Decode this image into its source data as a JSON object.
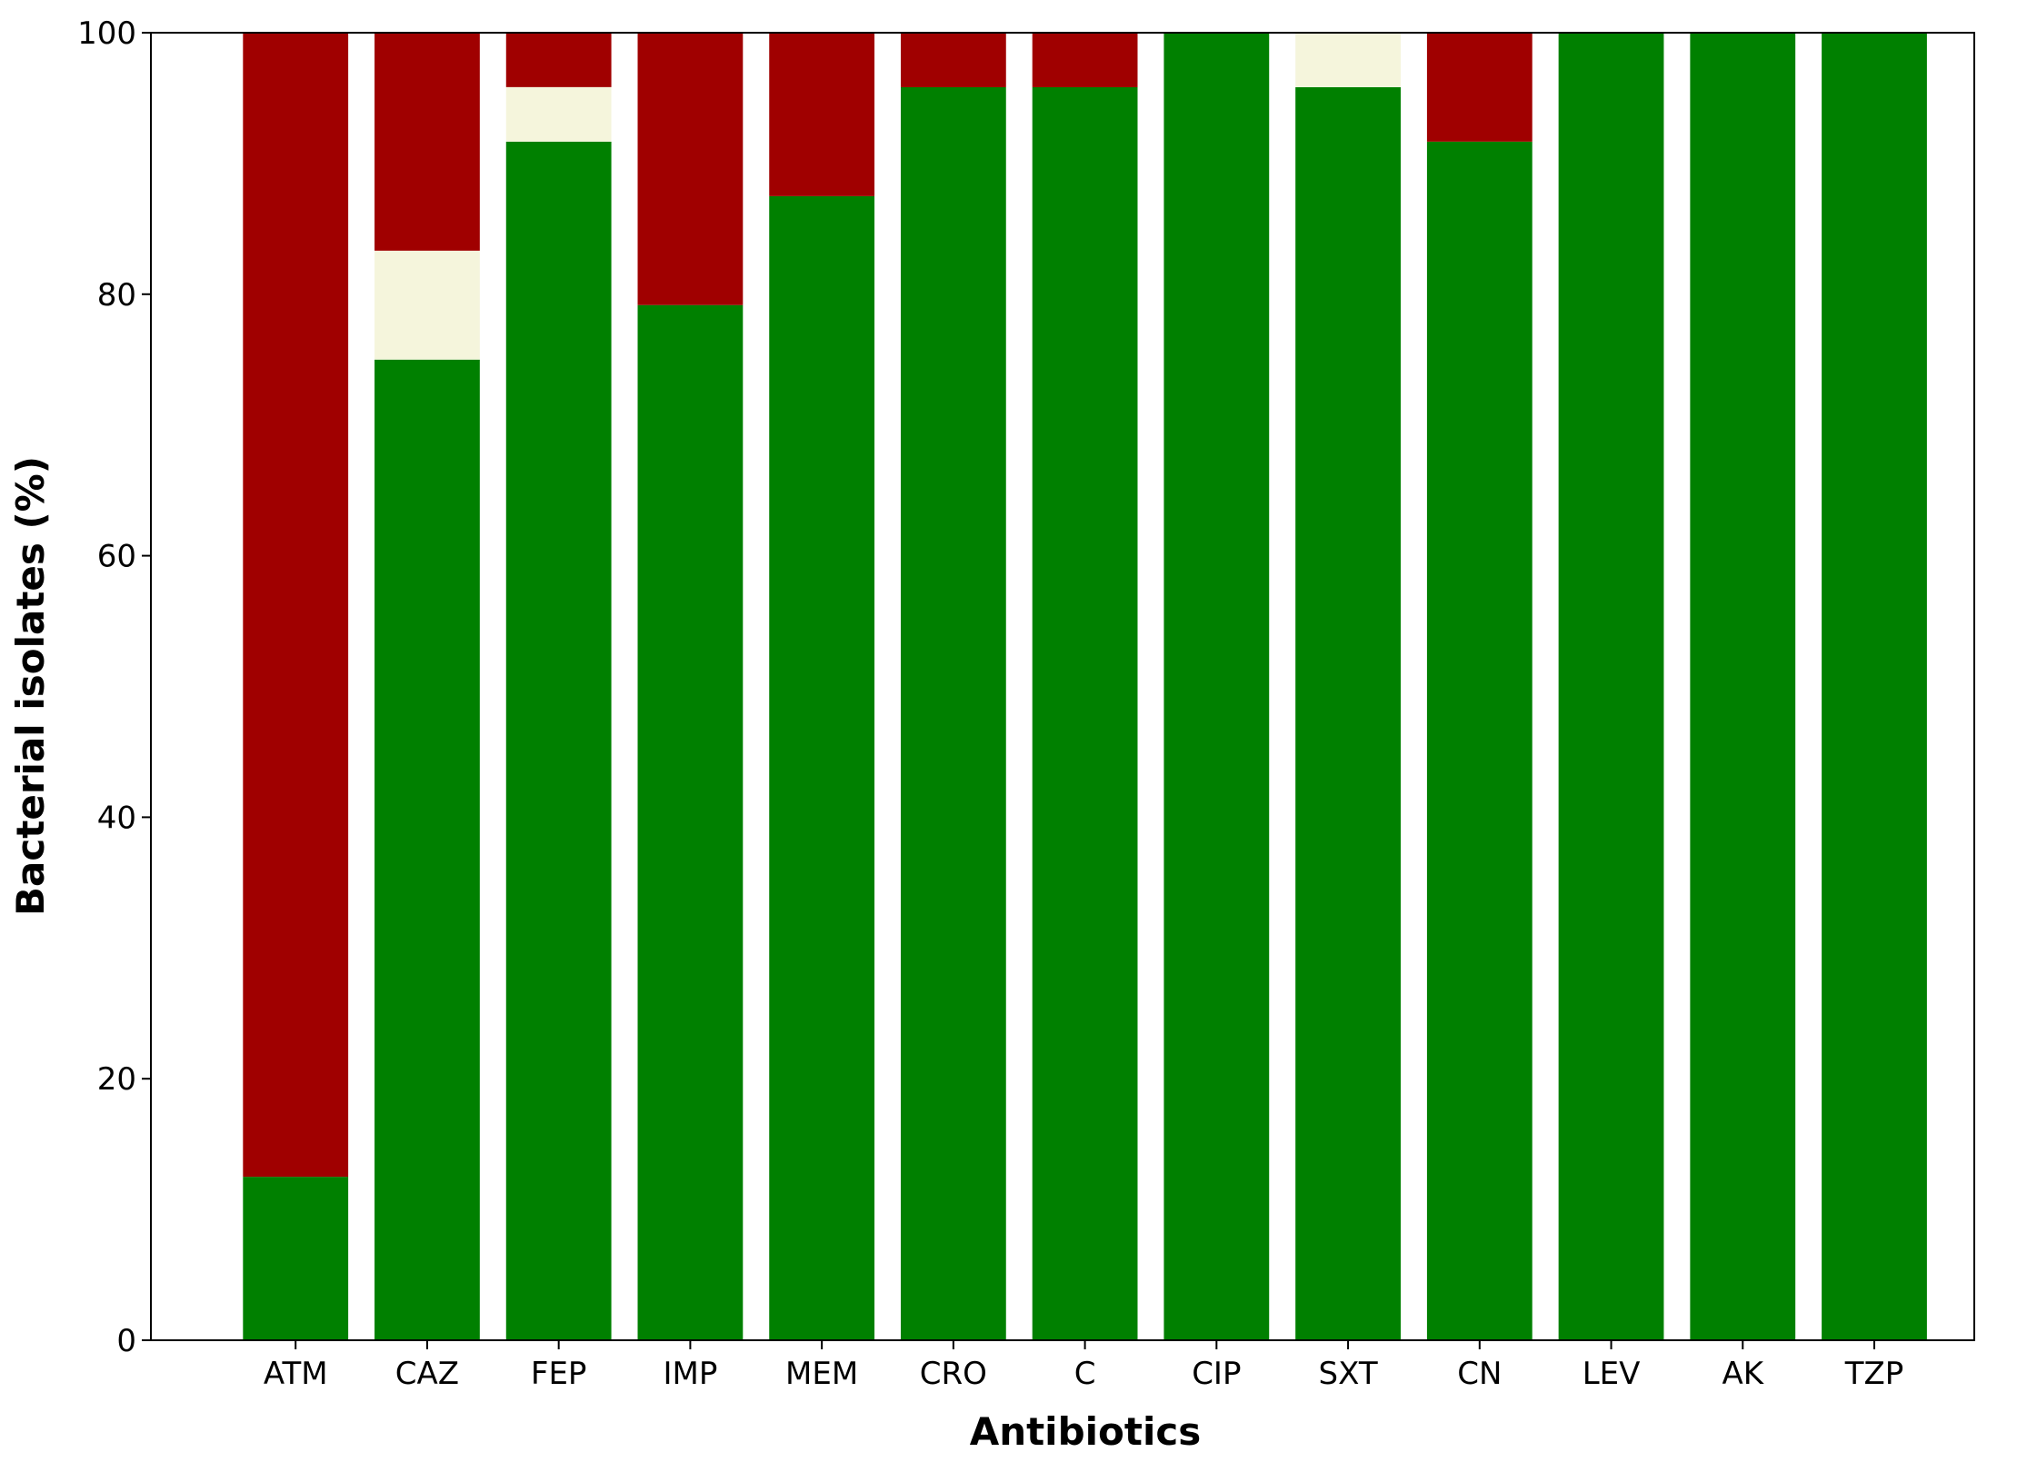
{
  "chart_data": {
    "type": "bar",
    "stacked": true,
    "title": "",
    "xlabel": "Antibiotics",
    "ylabel": "Bacterial isolates (%)",
    "ylim": [
      0,
      100
    ],
    "yticks": [
      0,
      20,
      40,
      60,
      80,
      100
    ],
    "grid": false,
    "categories": [
      "ATM",
      "CAZ",
      "FEP",
      "IMP",
      "MEM",
      "CRO",
      "C",
      "CIP",
      "SXT",
      "CN",
      "LEV",
      "AK",
      "TZP"
    ],
    "series": [
      {
        "color": "#008000",
        "values": [
          12.5,
          75,
          91.67,
          79.17,
          87.5,
          95.83,
          95.83,
          100,
          95.83,
          91.67,
          100,
          100,
          100
        ]
      },
      {
        "color": "#f5f5dc",
        "values": [
          0,
          8.33,
          4.17,
          0,
          0,
          0,
          0,
          0,
          4.17,
          0,
          0,
          0,
          0
        ]
      },
      {
        "color": "#a00000",
        "values": [
          87.5,
          16.67,
          4.17,
          20.83,
          12.5,
          4.17,
          4.17,
          0,
          0,
          8.33,
          0,
          0,
          0
        ]
      }
    ]
  }
}
